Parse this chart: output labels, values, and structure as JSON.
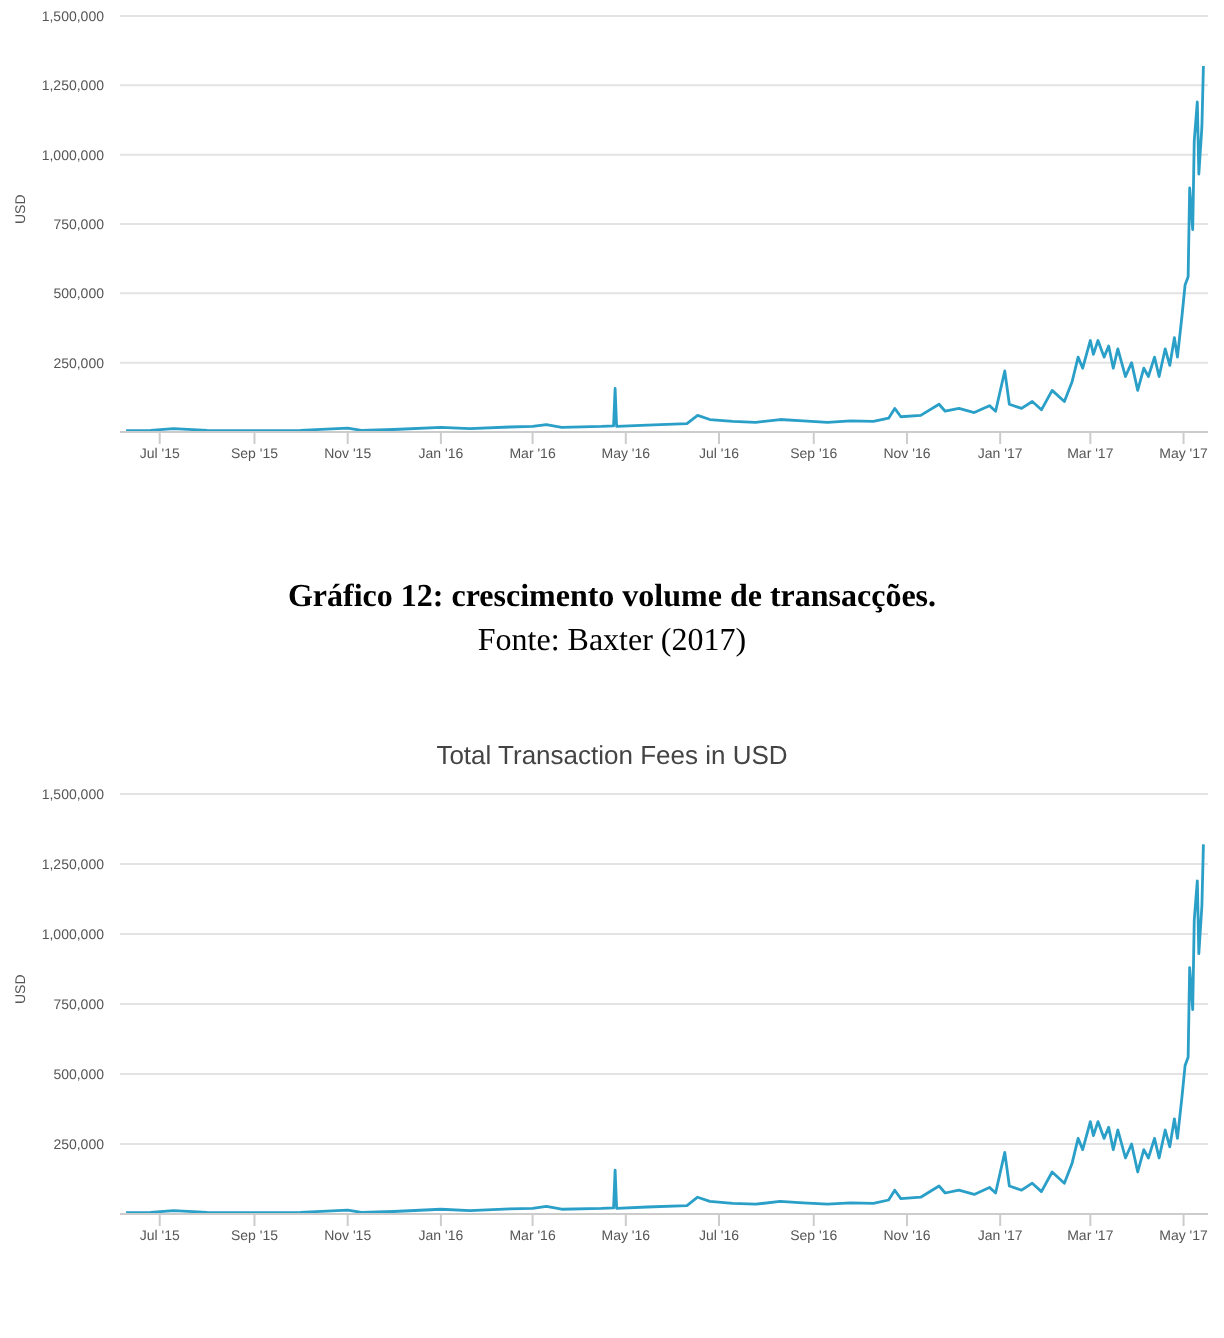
{
  "chart_data": [
    {
      "type": "line",
      "ylabel": "USD",
      "annotations": [
        "Gráfico 12: crescimento volume de transacções.",
        "Fonte: Baxter (2017)"
      ],
      "x": [
        "2015-06-09",
        "2015-06-25",
        "2015-07-10",
        "2015-08-01",
        "2015-09-01",
        "2015-10-01",
        "2015-11-01",
        "2015-11-10",
        "2015-12-01",
        "2016-01-01",
        "2016-01-20",
        "2016-02-15",
        "2016-03-01",
        "2016-03-10",
        "2016-03-20",
        "2016-04-15",
        "2016-04-23",
        "2016-04-24",
        "2016-04-25",
        "2016-05-15",
        "2016-06-10",
        "2016-06-17",
        "2016-06-25",
        "2016-07-10",
        "2016-07-25",
        "2016-08-10",
        "2016-08-25",
        "2016-09-10",
        "2016-09-25",
        "2016-10-10",
        "2016-10-20",
        "2016-10-24",
        "2016-10-28",
        "2016-11-10",
        "2016-11-22",
        "2016-11-26",
        "2016-12-05",
        "2016-12-15",
        "2016-12-25",
        "2016-12-29",
        "2017-01-04",
        "2017-01-07",
        "2017-01-15",
        "2017-01-22",
        "2017-01-28",
        "2017-02-04",
        "2017-02-12",
        "2017-02-17",
        "2017-02-21",
        "2017-02-24",
        "2017-03-01",
        "2017-03-03",
        "2017-03-06",
        "2017-03-10",
        "2017-03-13",
        "2017-03-16",
        "2017-03-19",
        "2017-03-24",
        "2017-03-28",
        "2017-04-01",
        "2017-04-05",
        "2017-04-08",
        "2017-04-12",
        "2017-04-15",
        "2017-04-19",
        "2017-04-22",
        "2017-04-25",
        "2017-04-27",
        "2017-04-30",
        "2017-05-02",
        "2017-05-04",
        "2017-05-05",
        "2017-05-07",
        "2017-05-08",
        "2017-05-10",
        "2017-05-11",
        "2017-05-13",
        "2017-05-14"
      ],
      "series": [
        {
          "color": "#2a9fc7",
          "values": [
            5000,
            6000,
            12000,
            6000,
            5000,
            6000,
            14000,
            6000,
            9000,
            17000,
            12000,
            18000,
            20000,
            27000,
            17000,
            20000,
            22000,
            157000,
            20000,
            25000,
            30000,
            60000,
            45000,
            38000,
            35000,
            45000,
            40000,
            35000,
            40000,
            38000,
            50000,
            85000,
            55000,
            60000,
            100000,
            75000,
            85000,
            70000,
            95000,
            75000,
            220000,
            100000,
            85000,
            110000,
            80000,
            150000,
            110000,
            180000,
            270000,
            230000,
            330000,
            280000,
            330000,
            270000,
            310000,
            230000,
            300000,
            200000,
            250000,
            150000,
            230000,
            200000,
            270000,
            200000,
            300000,
            240000,
            340000,
            270000,
            420000,
            530000,
            560000,
            880000,
            730000,
            1050000,
            1190000,
            930000,
            1100000,
            1320000
          ]
        }
      ],
      "xlim": [
        "2015-06-05",
        "2017-05-17"
      ],
      "xticks": [
        {
          "value": "2015-07-01",
          "label": "Jul '15"
        },
        {
          "value": "2015-09-01",
          "label": "Sep '15"
        },
        {
          "value": "2015-11-01",
          "label": "Nov '15"
        },
        {
          "value": "2016-01-01",
          "label": "Jan '16"
        },
        {
          "value": "2016-03-01",
          "label": "Mar '16"
        },
        {
          "value": "2016-05-01",
          "label": "May '16"
        },
        {
          "value": "2016-07-01",
          "label": "Jul '16"
        },
        {
          "value": "2016-09-01",
          "label": "Sep '16"
        },
        {
          "value": "2016-11-01",
          "label": "Nov '16"
        },
        {
          "value": "2017-01-01",
          "label": "Jan '17"
        },
        {
          "value": "2017-03-01",
          "label": "Mar '17"
        },
        {
          "value": "2017-05-01",
          "label": "May '17"
        }
      ],
      "ylim": [
        0,
        1500000
      ],
      "yticks": [
        {
          "value": 250000,
          "label": "250,000"
        },
        {
          "value": 500000,
          "label": "500,000"
        },
        {
          "value": 750000,
          "label": "750,000"
        },
        {
          "value": 1000000,
          "label": "1,000,000"
        },
        {
          "value": 1250000,
          "label": "1,250,000"
        },
        {
          "value": 1500000,
          "label": "1,500,000"
        }
      ],
      "grid": "y",
      "legend": false,
      "marker": "none",
      "line_style": "solid"
    },
    {
      "type": "line",
      "title": "Total Transaction Fees in USD",
      "ylabel": "USD",
      "x": [
        "2015-06-09",
        "2015-06-25",
        "2015-07-10",
        "2015-08-01",
        "2015-09-01",
        "2015-10-01",
        "2015-11-01",
        "2015-11-10",
        "2015-12-01",
        "2016-01-01",
        "2016-01-20",
        "2016-02-15",
        "2016-03-01",
        "2016-03-10",
        "2016-03-20",
        "2016-04-15",
        "2016-04-23",
        "2016-04-24",
        "2016-04-25",
        "2016-05-15",
        "2016-06-10",
        "2016-06-17",
        "2016-06-25",
        "2016-07-10",
        "2016-07-25",
        "2016-08-10",
        "2016-08-25",
        "2016-09-10",
        "2016-09-25",
        "2016-10-10",
        "2016-10-20",
        "2016-10-24",
        "2016-10-28",
        "2016-11-10",
        "2016-11-22",
        "2016-11-26",
        "2016-12-05",
        "2016-12-15",
        "2016-12-25",
        "2016-12-29",
        "2017-01-04",
        "2017-01-07",
        "2017-01-15",
        "2017-01-22",
        "2017-01-28",
        "2017-02-04",
        "2017-02-12",
        "2017-02-17",
        "2017-02-21",
        "2017-02-24",
        "2017-03-01",
        "2017-03-03",
        "2017-03-06",
        "2017-03-10",
        "2017-03-13",
        "2017-03-16",
        "2017-03-19",
        "2017-03-24",
        "2017-03-28",
        "2017-04-01",
        "2017-04-05",
        "2017-04-08",
        "2017-04-12",
        "2017-04-15",
        "2017-04-19",
        "2017-04-22",
        "2017-04-25",
        "2017-04-27",
        "2017-04-30",
        "2017-05-02",
        "2017-05-04",
        "2017-05-05",
        "2017-05-07",
        "2017-05-08",
        "2017-05-10",
        "2017-05-11",
        "2017-05-13",
        "2017-05-14"
      ],
      "series": [
        {
          "color": "#2a9fc7",
          "values": [
            5000,
            6000,
            12000,
            6000,
            5000,
            6000,
            14000,
            6000,
            9000,
            17000,
            12000,
            18000,
            20000,
            27000,
            17000,
            20000,
            22000,
            157000,
            20000,
            25000,
            30000,
            60000,
            45000,
            38000,
            35000,
            45000,
            40000,
            35000,
            40000,
            38000,
            50000,
            85000,
            55000,
            60000,
            100000,
            75000,
            85000,
            70000,
            95000,
            75000,
            220000,
            100000,
            85000,
            110000,
            80000,
            150000,
            110000,
            180000,
            270000,
            230000,
            330000,
            280000,
            330000,
            270000,
            310000,
            230000,
            300000,
            200000,
            250000,
            150000,
            230000,
            200000,
            270000,
            200000,
            300000,
            240000,
            340000,
            270000,
            420000,
            530000,
            560000,
            880000,
            730000,
            1050000,
            1190000,
            930000,
            1100000,
            1320000
          ]
        }
      ],
      "xlim": [
        "2015-06-05",
        "2017-05-17"
      ],
      "xticks": [
        {
          "value": "2015-07-01",
          "label": "Jul '15"
        },
        {
          "value": "2015-09-01",
          "label": "Sep '15"
        },
        {
          "value": "2015-11-01",
          "label": "Nov '15"
        },
        {
          "value": "2016-01-01",
          "label": "Jan '16"
        },
        {
          "value": "2016-03-01",
          "label": "Mar '16"
        },
        {
          "value": "2016-05-01",
          "label": "May '16"
        },
        {
          "value": "2016-07-01",
          "label": "Jul '16"
        },
        {
          "value": "2016-09-01",
          "label": "Sep '16"
        },
        {
          "value": "2016-11-01",
          "label": "Nov '16"
        },
        {
          "value": "2017-01-01",
          "label": "Jan '17"
        },
        {
          "value": "2017-03-01",
          "label": "Mar '17"
        },
        {
          "value": "2017-05-01",
          "label": "May '17"
        }
      ],
      "ylim": [
        0,
        1500000
      ],
      "yticks": [
        {
          "value": 250000,
          "label": "250,000"
        },
        {
          "value": 500000,
          "label": "500,000"
        },
        {
          "value": 750000,
          "label": "750,000"
        },
        {
          "value": 1000000,
          "label": "1,000,000"
        },
        {
          "value": 1250000,
          "label": "1,250,000"
        },
        {
          "value": 1500000,
          "label": "1,500,000"
        }
      ],
      "grid": "y",
      "legend": false,
      "marker": "none",
      "line_style": "solid"
    }
  ]
}
